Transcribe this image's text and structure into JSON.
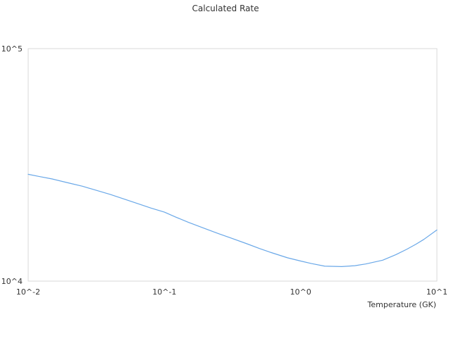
{
  "chart_data": {
    "type": "line",
    "title": "Calculated Rate",
    "xlabel": "Temperature (GK)",
    "ylabel": "",
    "x_scale": "log",
    "y_scale": "log",
    "xlim": [
      0.01,
      10
    ],
    "ylim": [
      10000,
      100000
    ],
    "x_tick_labels": [
      "10^-2",
      "10^-1",
      "10^0",
      "10^1"
    ],
    "y_tick_labels": [
      "10^4",
      "10^5"
    ],
    "grid": false,
    "legend": "none",
    "series": [
      {
        "color": "#6aa8e8",
        "points": [
          [
            0.01,
            28800
          ],
          [
            0.012,
            28200
          ],
          [
            0.015,
            27500
          ],
          [
            0.02,
            26400
          ],
          [
            0.025,
            25600
          ],
          [
            0.03,
            24800
          ],
          [
            0.04,
            23600
          ],
          [
            0.05,
            22600
          ],
          [
            0.06,
            21800
          ],
          [
            0.08,
            20600
          ],
          [
            0.1,
            19800
          ],
          [
            0.12,
            18900
          ],
          [
            0.15,
            17900
          ],
          [
            0.2,
            16800
          ],
          [
            0.25,
            16000
          ],
          [
            0.3,
            15400
          ],
          [
            0.4,
            14500
          ],
          [
            0.5,
            13800
          ],
          [
            0.6,
            13300
          ],
          [
            0.8,
            12600
          ],
          [
            1.0,
            12200
          ],
          [
            1.2,
            11900
          ],
          [
            1.5,
            11600
          ],
          [
            2.0,
            11550
          ],
          [
            2.5,
            11650
          ],
          [
            3.0,
            11850
          ],
          [
            4.0,
            12300
          ],
          [
            5.0,
            13000
          ],
          [
            6.0,
            13700
          ],
          [
            7.0,
            14400
          ],
          [
            8.0,
            15100
          ],
          [
            10.0,
            16600
          ]
        ]
      }
    ]
  }
}
